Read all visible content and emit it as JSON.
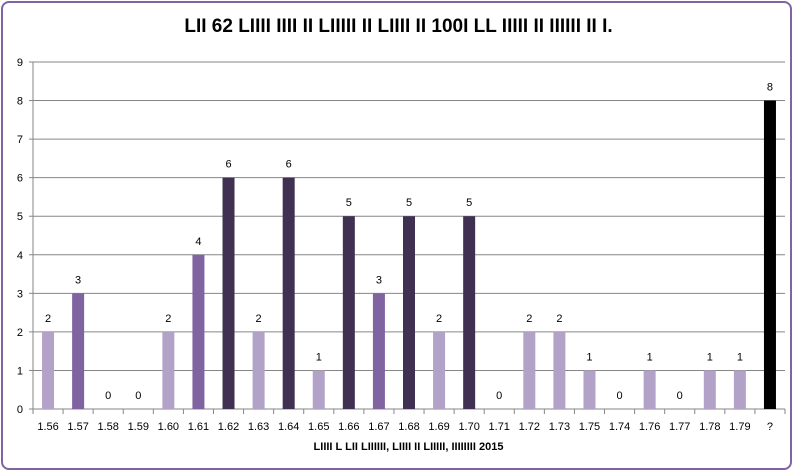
{
  "chart_data": {
    "type": "bar",
    "title": "LII 62 LIIII IIII II LIIIII II LIIII II 100I LL IIIII II IIIIII II I.",
    "xlabel": "LIIII L LII LIIIIII, LIIII II LIIIII, IIIIIIII 2015",
    "ylabel": "",
    "ylim": [
      0,
      9
    ],
    "yticks": [
      0,
      1,
      2,
      3,
      4,
      5,
      6,
      7,
      8,
      9
    ],
    "grid": true,
    "categories": [
      "1.56",
      "1.57",
      "1.58",
      "1.59",
      "1.60",
      "1.61",
      "1.62",
      "1.63",
      "1.64",
      "1.65",
      "1.66",
      "1.67",
      "1.68",
      "1.69",
      "1.70",
      "1.71",
      "1.72",
      "1.73",
      "1.75",
      "1.74",
      "1.76",
      "1.77",
      "1.78",
      "1.79",
      "?"
    ],
    "values": [
      2,
      3,
      0,
      0,
      2,
      4,
      6,
      2,
      6,
      1,
      5,
      3,
      5,
      2,
      5,
      0,
      2,
      2,
      1,
      0,
      1,
      0,
      1,
      1,
      8
    ],
    "colors": [
      "#b3a2c7",
      "#8064a2",
      "#b3a2c7",
      "#b3a2c7",
      "#b3a2c7",
      "#8064a2",
      "#403152",
      "#b3a2c7",
      "#403152",
      "#b3a2c7",
      "#403152",
      "#8064a2",
      "#403152",
      "#b3a2c7",
      "#403152",
      "#b3a2c7",
      "#b3a2c7",
      "#b3a2c7",
      "#b3a2c7",
      "#b3a2c7",
      "#b3a2c7",
      "#b3a2c7",
      "#b3a2c7",
      "#b3a2c7",
      "#000000"
    ]
  }
}
